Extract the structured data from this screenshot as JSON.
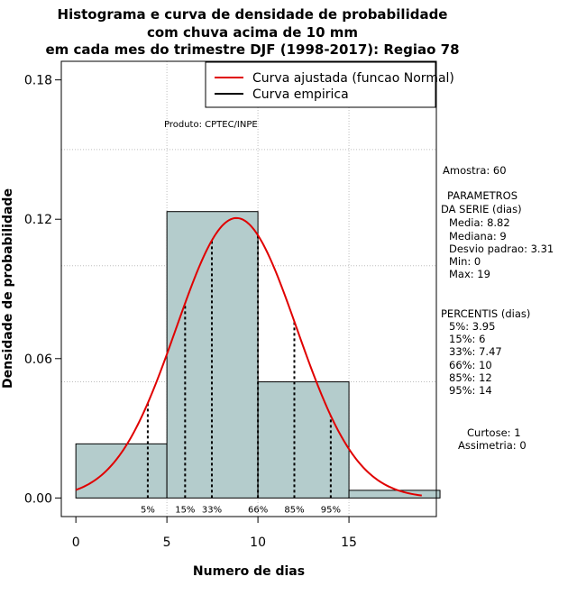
{
  "chart_data": {
    "type": "bar",
    "title": [
      "Histograma e curva de densidade de probabilidade",
      "com chuva acima de 10 mm",
      "em cada mes do trimestre DJF (1998-2017): Regiao 78"
    ],
    "xlabel": "Numero de dias",
    "ylabel": "Densidade de probabilidade",
    "xlim": [
      -0.8,
      19.8
    ],
    "ylim": [
      -0.008,
      0.188
    ],
    "x_ticks": [
      0,
      5,
      10,
      15
    ],
    "y_ticks": [
      0.0,
      0.06,
      0.12,
      0.18
    ],
    "y_tick_labels": [
      "0.00",
      "0.06",
      "0.12",
      "0.18"
    ],
    "bins": [
      {
        "from": 0,
        "to": 5,
        "density": 0.0233
      },
      {
        "from": 5,
        "to": 10,
        "density": 0.1233
      },
      {
        "from": 10,
        "to": 15,
        "density": 0.05
      },
      {
        "from": 15,
        "to": 20,
        "density": 0.0033
      }
    ],
    "fitted_curve": {
      "name": "Curva ajustada (funcao Normal)",
      "mean": 8.82,
      "sd": 3.31,
      "x_from": 0,
      "x_to": 19,
      "color": "#e00000"
    },
    "empirical_curve": {
      "name": "Curva empirica",
      "color": "#000000"
    },
    "percentiles": [
      {
        "label": "5%",
        "x": 3.95
      },
      {
        "label": "15%",
        "x": 6
      },
      {
        "label": "33%",
        "x": 7.47
      },
      {
        "label": "66%",
        "x": 10
      },
      {
        "label": "85%",
        "x": 12
      },
      {
        "label": "95%",
        "x": 14
      }
    ],
    "grid_y": [
      0.05,
      0.1,
      0.15
    ],
    "grid_x": [
      5,
      10,
      15
    ],
    "legend_position": "top-right",
    "bar_color": "#b4cccc",
    "annotation": "Produto: CPTEC/INPE"
  },
  "sidebar": {
    "amostra": "Amostra: 60",
    "parametros_title": [
      "PARAMETROS",
      "DA SERIE (dias)"
    ],
    "parametros": [
      "Media: 8.82",
      "Mediana: 9",
      "Desvio padrao: 3.31",
      "Min: 0",
      "Max: 19"
    ],
    "percentis_title": "PERCENTIS (dias)",
    "percentis": [
      "5%: 3.95",
      "15%: 6",
      "33%: 7.47",
      "66%: 10",
      "85%: 12",
      "95%: 14"
    ],
    "curtose": "Curtose: 1",
    "assimetria": "Assimetria: 0"
  }
}
